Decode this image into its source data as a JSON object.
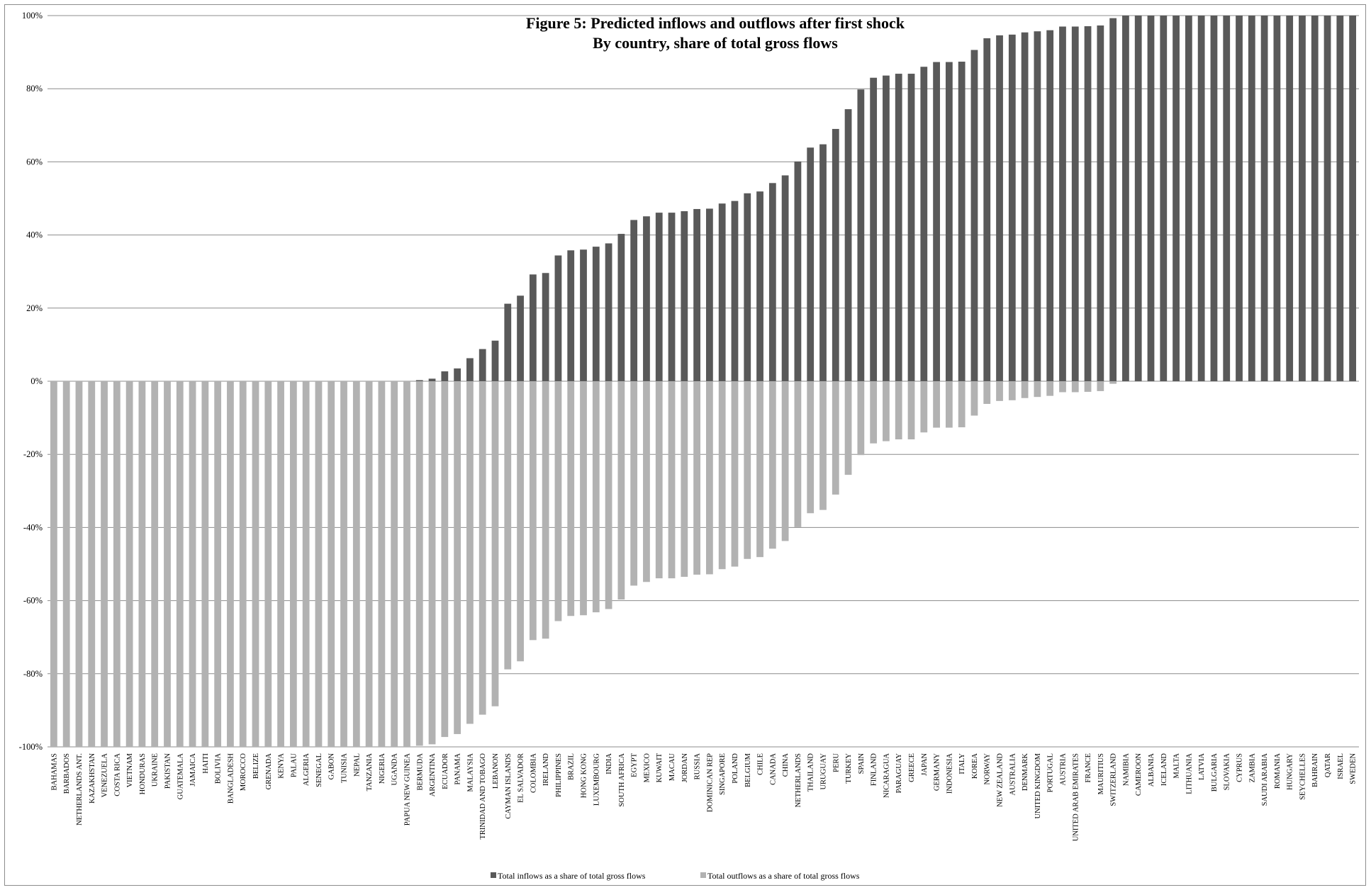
{
  "chart_data": {
    "type": "bar",
    "title": "Figure 5: Predicted inflows and outflows after first shock",
    "subtitle": "By country, share of total gross flows",
    "ylim": [
      -100,
      100
    ],
    "yticks": [
      "-100%",
      "-80%",
      "-60%",
      "-40%",
      "-20%",
      "0%",
      "20%",
      "40%",
      "60%",
      "80%",
      "100%"
    ],
    "ytick_values": [
      -100,
      -80,
      -60,
      -40,
      -20,
      0,
      20,
      40,
      60,
      80,
      100
    ],
    "grid": true,
    "legend_position": "bottom",
    "colors": {
      "inflows": "#595959",
      "outflows": "#b2b2b2",
      "grid": "#8c8c8c"
    },
    "categories": [
      "BAHAMAS",
      "BARBADOS",
      "NETHERLANDS ANT.",
      "KAZAKHSTAN",
      "VENEZUELA",
      "COSTA RICA",
      "VIETNAM",
      "HONDURAS",
      "UKRAINE",
      "PAKISTAN",
      "GUATEMALA",
      "JAMAICA",
      "HAITI",
      "BOLIVIA",
      "BANGLADESH",
      "MOROCCO",
      "BELIZE",
      "GRENADA",
      "KENYA",
      "PALAU",
      "ALGERIA",
      "SENEGAL",
      "GABON",
      "TUNISIA",
      "NEPAL",
      "TANZANIA",
      "NIGERIA",
      "UGANDA",
      "PAPUA NEW GUINEA",
      "BERMUDA",
      "ARGENTINA",
      "ECUADOR",
      "PANAMA",
      "MALAYSIA",
      "TRINIDAD AND TOBAGO",
      "LEBANON",
      "CAYMAN ISLANDS",
      "EL SALVADOR",
      "COLOMBIA",
      "IRELAND",
      "PHILIPPINES",
      "BRAZIL",
      "HONG KONG",
      "LUXEMBOURG",
      "INDIA",
      "SOUTH AFRICA",
      "EGYPT",
      "MEXICO",
      "KUWAIT",
      "MACAU",
      "JORDAN",
      "RUSSIA",
      "DOMINICAN REP",
      "SINGAPORE",
      "POLAND",
      "BELGIUM",
      "CHILE",
      "CANADA",
      "CHINA",
      "NETHERLANDS",
      "THAILAND",
      "URUGUAY",
      "PERU",
      "TURKEY",
      "SPAIN",
      "FINLAND",
      "NICARAGUA",
      "PARAGUAY",
      "GREECE",
      "JAPAN",
      "GERMANY",
      "INDONESIA",
      "ITALY",
      "KOREA",
      "NORWAY",
      "NEW ZEALAND",
      "AUSTRALIA",
      "DENMARK",
      "UNITED KINGDOM",
      "PORTUGAL",
      "AUSTRIA",
      "UNITED ARAB EMIRATES",
      "FRANCE",
      "MAURITIUS",
      "SWITZERLAND",
      "NAMIBIA",
      "CAMEROON",
      "ALBANIA",
      "ICELAND",
      "MALTA",
      "LITHUANIA",
      "LATVIA",
      "BULGARIA",
      "SLOVAKIA",
      "CYPRUS",
      "ZAMBIA",
      "SAUDI ARABIA",
      "ROMANIA",
      "HUNGARY",
      "SEYCHELLES",
      "BAHRAIN",
      "QATAR",
      "ISRAEL",
      "SWEDEN"
    ],
    "series": [
      {
        "name": "Total inflows as a share of total gross flows",
        "values": [
          0,
          0,
          0,
          0,
          0,
          0,
          0,
          0,
          0,
          0,
          0,
          0,
          0,
          0,
          0,
          0,
          0,
          0,
          0,
          0,
          0,
          0,
          0,
          0,
          0,
          0,
          0,
          0,
          0,
          0.3,
          0.7,
          2.7,
          3.5,
          6.3,
          8.8,
          11.1,
          21.2,
          23.4,
          29.2,
          29.6,
          34.4,
          35.8,
          36.0,
          36.8,
          37.7,
          40.3,
          44.1,
          45.1,
          46.1,
          46.1,
          46.5,
          47.1,
          47.2,
          48.6,
          49.3,
          51.4,
          51.9,
          54.2,
          56.3,
          60.1,
          63.9,
          64.8,
          69.0,
          74.4,
          79.8,
          83.0,
          83.6,
          84.1,
          84.1,
          86.0,
          87.3,
          87.3,
          87.4,
          90.6,
          93.8,
          94.6,
          94.8,
          95.4,
          95.7,
          96.0,
          97.0,
          97.0,
          97.1,
          97.3,
          99.3,
          100,
          100,
          100,
          100,
          100,
          100,
          100,
          100,
          100,
          100,
          100,
          100,
          100,
          100,
          100,
          100,
          100,
          100,
          100
        ]
      },
      {
        "name": "Total outflows as a share of total gross flows",
        "values": [
          -100,
          -100,
          -100,
          -100,
          -100,
          -100,
          -100,
          -100,
          -100,
          -100,
          -100,
          -100,
          -100,
          -100,
          -100,
          -100,
          -100,
          -100,
          -100,
          -100,
          -100,
          -100,
          -100,
          -100,
          -100,
          -100,
          -100,
          -100,
          -100,
          -99.7,
          -99.3,
          -97.3,
          -96.5,
          -93.7,
          -91.2,
          -88.9,
          -78.8,
          -76.6,
          -70.8,
          -70.4,
          -65.6,
          -64.2,
          -64.0,
          -63.2,
          -62.3,
          -59.7,
          -55.9,
          -54.9,
          -53.9,
          -53.9,
          -53.5,
          -52.9,
          -52.8,
          -51.4,
          -50.7,
          -48.6,
          -48.1,
          -45.8,
          -43.7,
          -39.9,
          -36.1,
          -35.2,
          -31.0,
          -25.6,
          -20.2,
          -17.0,
          -16.4,
          -15.9,
          -15.9,
          -14.0,
          -12.7,
          -12.7,
          -12.6,
          -9.4,
          -6.2,
          -5.4,
          -5.2,
          -4.6,
          -4.3,
          -4.0,
          -3.0,
          -3.0,
          -2.9,
          -2.7,
          -0.7,
          0,
          0,
          0,
          0,
          0,
          0,
          0,
          0,
          0,
          0,
          0,
          0,
          0,
          0,
          0,
          0,
          0,
          0,
          0
        ]
      }
    ]
  }
}
